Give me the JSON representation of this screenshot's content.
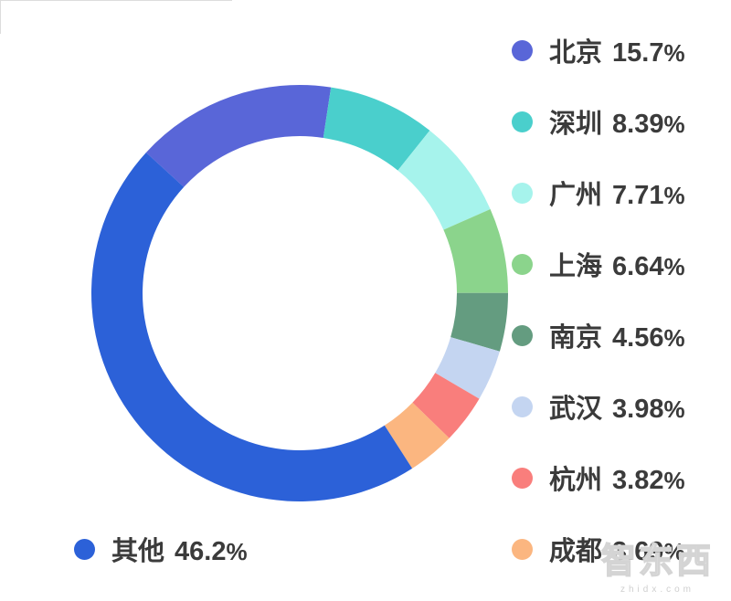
{
  "chart_data": {
    "type": "pie",
    "subtype": "donut",
    "title": "",
    "legend_position": "right-column-plus-bottom-left",
    "start_angle_deg_clockwise_from_top": -47.5,
    "direction": "clockwise",
    "inner_radius_ratio": 0.75,
    "items": [
      {
        "label": "北京",
        "value": 15.7,
        "value_text": "15.7%",
        "color": "#5966d8"
      },
      {
        "label": "深圳",
        "value": 8.39,
        "value_text": "8.39%",
        "color": "#4acfcc"
      },
      {
        "label": "广州",
        "value": 7.71,
        "value_text": "7.71%",
        "color": "#a6f3ec"
      },
      {
        "label": "上海",
        "value": 6.64,
        "value_text": "6.64%",
        "color": "#8bd48c"
      },
      {
        "label": "南京",
        "value": 4.56,
        "value_text": "4.56%",
        "color": "#649c80"
      },
      {
        "label": "武汉",
        "value": 3.98,
        "value_text": "3.98%",
        "color": "#c4d5f1"
      },
      {
        "label": "杭州",
        "value": 3.82,
        "value_text": "3.82%",
        "color": "#f97e7c"
      },
      {
        "label": "成都",
        "value": 3.69,
        "value_text": "3.69%",
        "color": "#fbb680"
      },
      {
        "label": "其他",
        "value": 46.2,
        "value_text": "46.2%",
        "color": "#2c61d8"
      }
    ]
  },
  "watermark": {
    "logo": "智东西",
    "domain": "zhidx.com"
  }
}
